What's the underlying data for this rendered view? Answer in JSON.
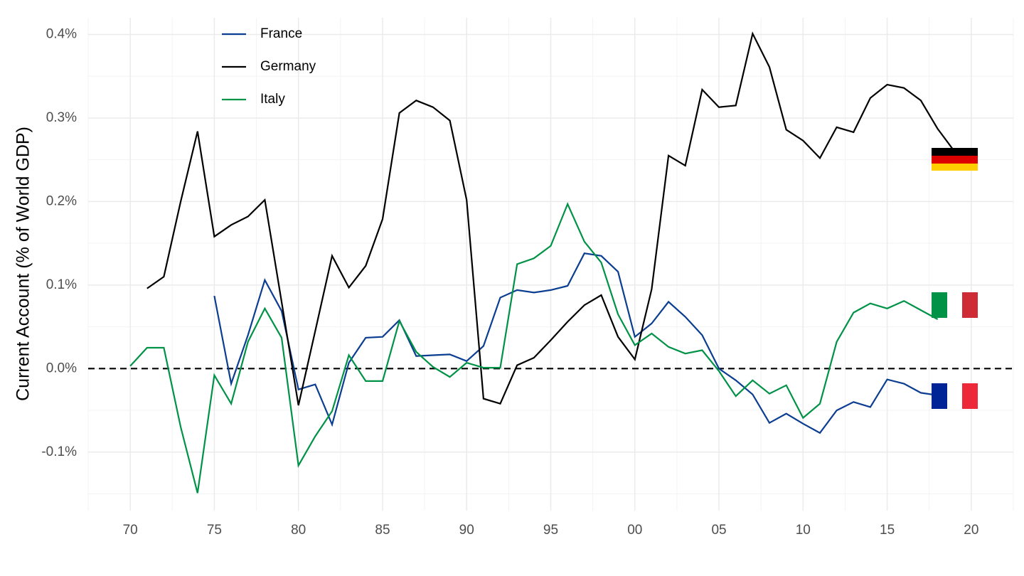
{
  "chart_data": {
    "type": "line",
    "y_label": "Current Account (% of World GDP)",
    "x": [
      1970,
      1971,
      1972,
      1973,
      1974,
      1975,
      1976,
      1977,
      1978,
      1979,
      1980,
      1981,
      1982,
      1983,
      1984,
      1985,
      1986,
      1987,
      1988,
      1989,
      1990,
      1991,
      1992,
      1993,
      1994,
      1995,
      1996,
      1997,
      1998,
      1999,
      2000,
      2001,
      2002,
      2003,
      2004,
      2005,
      2006,
      2007,
      2008,
      2009,
      2010,
      2011,
      2012,
      2013,
      2014,
      2015,
      2016,
      2017,
      2018,
      2019
    ],
    "series": [
      {
        "name": "France",
        "color": "#0b3d91",
        "values": [
          null,
          null,
          null,
          null,
          null,
          0.087,
          -0.018,
          0.04,
          0.106,
          0.069,
          -0.025,
          -0.019,
          -0.067,
          0.007,
          0.037,
          0.038,
          0.058,
          0.015,
          0.016,
          0.017,
          0.009,
          0.027,
          0.085,
          0.094,
          0.091,
          0.094,
          0.099,
          0.138,
          0.135,
          0.116,
          0.038,
          0.054,
          0.08,
          0.062,
          0.04,
          0.0,
          -0.014,
          -0.031,
          -0.065,
          -0.054,
          -0.066,
          -0.077,
          -0.05,
          -0.04,
          -0.046,
          -0.013,
          -0.018,
          -0.029,
          -0.032,
          null
        ]
      },
      {
        "name": "Germany",
        "color": "#000000",
        "values": [
          null,
          0.096,
          0.11,
          0.2,
          0.284,
          0.158,
          0.172,
          0.182,
          0.202,
          0.08,
          -0.044,
          0.045,
          0.135,
          0.097,
          0.123,
          0.179,
          0.306,
          0.321,
          0.313,
          0.297,
          0.202,
          -0.036,
          -0.042,
          0.004,
          0.013,
          0.034,
          0.056,
          0.076,
          0.088,
          0.038,
          0.011,
          0.095,
          0.255,
          0.243,
          0.334,
          0.313,
          0.315,
          0.401,
          0.361,
          0.286,
          0.273,
          0.252,
          0.289,
          0.283,
          0.324,
          0.34,
          0.336,
          0.321,
          0.287,
          0.26
        ]
      },
      {
        "name": "Italy",
        "color": "#009246",
        "values": [
          0.003,
          0.025,
          0.025,
          -0.07,
          -0.149,
          -0.008,
          -0.042,
          0.032,
          0.072,
          0.037,
          -0.116,
          -0.081,
          -0.051,
          0.016,
          -0.015,
          -0.015,
          0.057,
          0.02,
          0.002,
          -0.01,
          0.007,
          0.001,
          0.001,
          0.125,
          0.132,
          0.147,
          0.197,
          0.152,
          0.127,
          0.065,
          0.028,
          0.042,
          0.026,
          0.018,
          0.022,
          -0.003,
          -0.033,
          -0.014,
          -0.03,
          -0.02,
          -0.059,
          -0.042,
          0.032,
          0.067,
          0.078,
          0.072,
          0.081,
          0.07,
          0.059,
          null
        ]
      }
    ],
    "xlim": [
      1967.5,
      2022.5
    ],
    "xticks": [
      {
        "value": 1970,
        "label": "70"
      },
      {
        "value": 1975,
        "label": "75"
      },
      {
        "value": 1980,
        "label": "80"
      },
      {
        "value": 1985,
        "label": "85"
      },
      {
        "value": 1990,
        "label": "90"
      },
      {
        "value": 1995,
        "label": "95"
      },
      {
        "value": 2000,
        "label": "00"
      },
      {
        "value": 2005,
        "label": "05"
      },
      {
        "value": 2010,
        "label": "10"
      },
      {
        "value": 2015,
        "label": "15"
      },
      {
        "value": 2020,
        "label": "20"
      }
    ],
    "ylim": [
      -0.17,
      0.42
    ],
    "yticks": [
      {
        "value": -0.1,
        "label": "-0.1%"
      },
      {
        "value": 0,
        "label": "0.0%"
      },
      {
        "value": 0.1,
        "label": "0.1%"
      },
      {
        "value": 0.2,
        "label": "0.2%"
      },
      {
        "value": 0.3,
        "label": "0.3%"
      },
      {
        "value": 0.4,
        "label": "0.4%"
      }
    ],
    "grid": true,
    "legend": "top-left"
  }
}
